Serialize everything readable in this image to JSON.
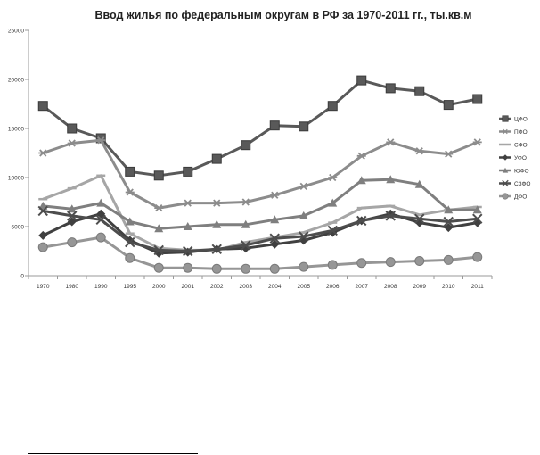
{
  "chart_data": {
    "type": "line",
    "title": "Ввод жилья по федеральным округам в РФ за 1970-2011 гг., ты.кв.м",
    "xlabel": "",
    "ylabel": "",
    "categories": [
      "1970",
      "1980",
      "1990",
      "1995",
      "2000",
      "2001",
      "2002",
      "2003",
      "2004",
      "2005",
      "2006",
      "2007",
      "2008",
      "2009",
      "2010",
      "2011"
    ],
    "ylim": [
      0,
      25000
    ],
    "yticks": [
      0,
      5000,
      10000,
      15000,
      20000,
      25000
    ],
    "grid": false,
    "legend": "right",
    "series": [
      {
        "name": "ЦФО",
        "marker": "square",
        "color": "#595959",
        "values": [
          17300,
          15000,
          14000,
          10600,
          10200,
          10600,
          11900,
          13300,
          15300,
          15200,
          17300,
          19900,
          19100,
          18800,
          17400,
          18000
        ]
      },
      {
        "name": "ПФО",
        "marker": "asterisk",
        "color": "#8c8c8c",
        "values": [
          12500,
          13500,
          13800,
          8500,
          6900,
          7400,
          7400,
          7500,
          8200,
          9100,
          10000,
          12200,
          13600,
          12700,
          12400,
          13600
        ]
      },
      {
        "name": "СФО",
        "marker": "dash",
        "color": "#a6a6a6",
        "values": [
          7800,
          8900,
          10200,
          4300,
          2800,
          2600,
          2600,
          3400,
          3900,
          4400,
          5400,
          6900,
          7100,
          6200,
          6700,
          7000
        ]
      },
      {
        "name": "УФО",
        "marker": "diamond",
        "color": "#404040",
        "values": [
          4100,
          5500,
          6300,
          3600,
          2300,
          2400,
          2700,
          2800,
          3200,
          3600,
          4400,
          5600,
          6300,
          5400,
          4900,
          5400
        ]
      },
      {
        "name": "ЮФО",
        "marker": "triangle",
        "color": "#7f7f7f",
        "values": [
          7100,
          6800,
          7400,
          5500,
          4800,
          5000,
          5200,
          5200,
          5700,
          6100,
          7400,
          9700,
          9800,
          9300,
          6700,
          6700
        ]
      },
      {
        "name": "СЗФО",
        "marker": "x",
        "color": "#4d4d4d",
        "values": [
          6600,
          6100,
          5700,
          3400,
          2600,
          2500,
          2700,
          3100,
          3800,
          4000,
          4600,
          5600,
          6100,
          5800,
          5500,
          5800
        ]
      },
      {
        "name": "ДФО",
        "marker": "circle",
        "color": "#969696",
        "values": [
          2900,
          3400,
          3900,
          1800,
          800,
          800,
          700,
          700,
          700,
          900,
          1100,
          1300,
          1400,
          1500,
          1600,
          1900
        ]
      }
    ]
  }
}
